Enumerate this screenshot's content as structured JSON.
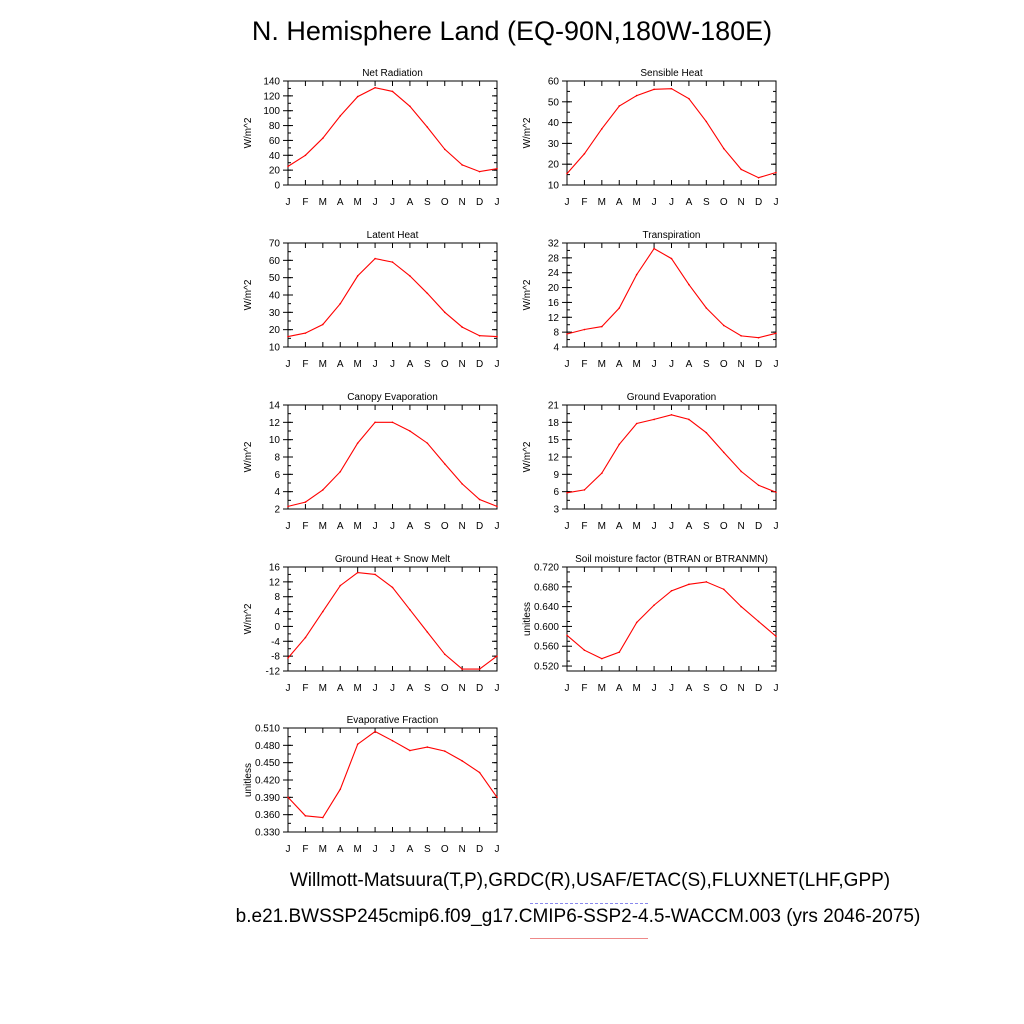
{
  "title": "N. Hemisphere Land (EQ-90N,180W-180E)",
  "footer": {
    "obs_label": "Willmott-Matsuura(T,P),GRDC(R),USAF/ETAC(S),FLUXNET(LHF,GPP)",
    "case_label": "b.e21.BWSSP245cmip6.f09_g17.CMIP6-SSP2-4.5-WACCM.003 (yrs 2046-2075)",
    "obs_color": "#8888ee",
    "case_color": "#ee8888"
  },
  "line_color": "#ff0000",
  "chart_data": [
    {
      "type": "line",
      "title": "Net Radiation",
      "ylabel": "W/m^2",
      "categories": [
        "J",
        "F",
        "M",
        "A",
        "M",
        "J",
        "J",
        "A",
        "S",
        "O",
        "N",
        "D",
        "J"
      ],
      "ylim": [
        0,
        140
      ],
      "yticks": [
        "0",
        "20",
        "40",
        "60",
        "80",
        "100",
        "120",
        "140"
      ],
      "values": [
        25,
        40,
        63,
        93,
        119,
        131,
        126,
        106,
        78,
        48,
        27,
        18,
        22
      ]
    },
    {
      "type": "line",
      "title": "Sensible Heat",
      "ylabel": "W/m^2",
      "categories": [
        "J",
        "F",
        "M",
        "A",
        "M",
        "J",
        "J",
        "A",
        "S",
        "O",
        "N",
        "D",
        "J"
      ],
      "ylim": [
        10,
        60
      ],
      "yticks": [
        "10",
        "20",
        "30",
        "40",
        "50",
        "60"
      ],
      "values": [
        15.5,
        25,
        37,
        48,
        53,
        56,
        56.3,
        51.5,
        40.5,
        27.5,
        17.5,
        13.5,
        16
      ]
    },
    {
      "type": "line",
      "title": "Latent Heat",
      "ylabel": "W/m^2",
      "categories": [
        "J",
        "F",
        "M",
        "A",
        "M",
        "J",
        "J",
        "A",
        "S",
        "O",
        "N",
        "D",
        "J"
      ],
      "ylim": [
        10,
        70
      ],
      "yticks": [
        "10",
        "20",
        "30",
        "40",
        "50",
        "60",
        "70"
      ],
      "values": [
        16,
        18,
        23,
        35,
        51,
        61,
        59,
        51,
        41,
        30,
        21.5,
        16.5,
        16
      ]
    },
    {
      "type": "line",
      "title": "Transpiration",
      "ylabel": "W/m^2",
      "categories": [
        "J",
        "F",
        "M",
        "A",
        "M",
        "J",
        "J",
        "A",
        "S",
        "O",
        "N",
        "D",
        "J"
      ],
      "ylim": [
        4,
        32
      ],
      "yticks": [
        "4",
        "8",
        "12",
        "16",
        "20",
        "24",
        "28",
        "32"
      ],
      "values": [
        7.5,
        8.7,
        9.5,
        14.5,
        23.5,
        30.5,
        27.8,
        20.8,
        14.5,
        9.8,
        7,
        6.5,
        7.7
      ]
    },
    {
      "type": "line",
      "title": "Canopy Evaporation",
      "ylabel": "W/m^2",
      "categories": [
        "J",
        "F",
        "M",
        "A",
        "M",
        "J",
        "J",
        "A",
        "S",
        "O",
        "N",
        "D",
        "J"
      ],
      "ylim": [
        2,
        14
      ],
      "yticks": [
        "2",
        "4",
        "6",
        "8",
        "10",
        "12",
        "14"
      ],
      "values": [
        2.3,
        2.8,
        4.2,
        6.3,
        9.6,
        12,
        12,
        11,
        9.6,
        7.2,
        4.9,
        3.1,
        2.3
      ]
    },
    {
      "type": "line",
      "title": "Ground Evaporation",
      "ylabel": "W/m^2",
      "categories": [
        "J",
        "F",
        "M",
        "A",
        "M",
        "J",
        "J",
        "A",
        "S",
        "O",
        "N",
        "D",
        "J"
      ],
      "ylim": [
        3,
        21
      ],
      "yticks": [
        "3",
        "6",
        "9",
        "12",
        "15",
        "18",
        "21"
      ],
      "values": [
        5.8,
        6.3,
        9.2,
        14.2,
        17.8,
        18.5,
        19.3,
        18.5,
        16.2,
        12.8,
        9.5,
        7.1,
        5.9
      ]
    },
    {
      "type": "line",
      "title": "Ground Heat + Snow Melt",
      "ylabel": "W/m^2",
      "categories": [
        "J",
        "F",
        "M",
        "A",
        "M",
        "J",
        "J",
        "A",
        "S",
        "O",
        "N",
        "D",
        "J"
      ],
      "ylim": [
        -12,
        16
      ],
      "yticks": [
        "-12",
        "-8",
        "-4",
        "0",
        "4",
        "8",
        "12",
        "16"
      ],
      "values": [
        -8.5,
        -3,
        4,
        11,
        14.5,
        14,
        10.5,
        4.5,
        -1.5,
        -7.5,
        -11.5,
        -11.5,
        -8
      ]
    },
    {
      "type": "line",
      "title": "Soil moisture factor (BTRAN or BTRANMN)",
      "ylabel": "unitless",
      "categories": [
        "J",
        "F",
        "M",
        "A",
        "M",
        "J",
        "J",
        "A",
        "S",
        "O",
        "N",
        "D",
        "J"
      ],
      "ylim": [
        0.51,
        0.72
      ],
      "yticks": [
        "0.520",
        "0.560",
        "0.600",
        "0.640",
        "0.680",
        "0.720"
      ],
      "values": [
        0.582,
        0.552,
        0.535,
        0.548,
        0.608,
        0.643,
        0.672,
        0.685,
        0.69,
        0.675,
        0.64,
        0.61,
        0.58
      ]
    },
    {
      "type": "line",
      "title": "Evaporative Fraction",
      "ylabel": "unitless",
      "categories": [
        "J",
        "F",
        "M",
        "A",
        "M",
        "J",
        "J",
        "A",
        "S",
        "O",
        "N",
        "D",
        "J"
      ],
      "ylim": [
        0.33,
        0.51
      ],
      "yticks": [
        "0.330",
        "0.360",
        "0.390",
        "0.420",
        "0.450",
        "0.480",
        "0.510"
      ],
      "values": [
        0.39,
        0.358,
        0.355,
        0.404,
        0.482,
        0.504,
        0.488,
        0.471,
        0.477,
        0.47,
        0.453,
        0.433,
        0.39
      ]
    }
  ]
}
